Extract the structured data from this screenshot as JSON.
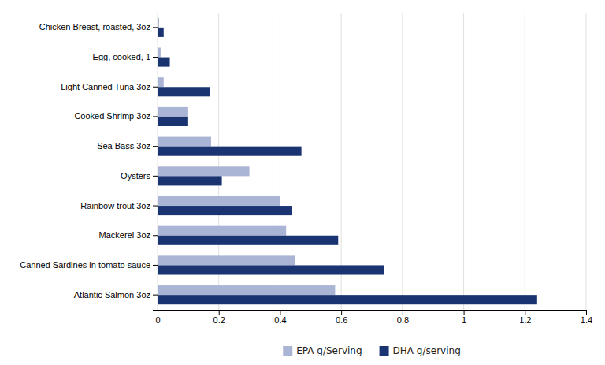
{
  "chart_data": {
    "type": "bar",
    "orientation": "horizontal",
    "categories": [
      "Atlantic Salmon 3oz",
      "Canned Sardines in tomato sauce",
      "Mackerel 3oz",
      "Rainbow trout 3oz",
      "Oysters",
      "Sea Bass 3oz",
      "Cooked Shrimp 3oz",
      "Light Canned Tuna 3oz",
      "Egg, cooked, 1",
      "Chicken Breast, roasted, 3oz"
    ],
    "series": [
      {
        "name": "EPA g/Serving",
        "color": "#aab4d4",
        "values": [
          0.58,
          0.45,
          0.42,
          0.4,
          0.3,
          0.175,
          0.1,
          0.02,
          0.01,
          0.005
        ]
      },
      {
        "name": "DHA g/serving",
        "color": "#1a3472",
        "values": [
          1.24,
          0.74,
          0.59,
          0.44,
          0.21,
          0.47,
          0.1,
          0.17,
          0.04,
          0.02
        ]
      }
    ],
    "xlim": [
      0,
      1.4
    ],
    "xticks": [
      0,
      0.2,
      0.4,
      0.6,
      0.8,
      1,
      1.2,
      1.4
    ],
    "grid": true,
    "legend": "bottom"
  }
}
